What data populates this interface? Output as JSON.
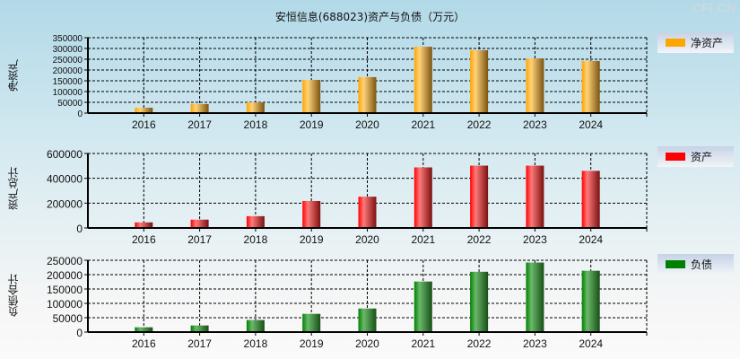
{
  "title": "安恒信息(688023)资产与负债（万元）",
  "watermark": "CFi.CN",
  "chart_data": [
    {
      "type": "bar",
      "ylabel": "净资产",
      "legend": "净资产",
      "color": "#ffa500",
      "categories": [
        "2016",
        "2017",
        "2018",
        "2019",
        "2020",
        "2021",
        "2022",
        "2023",
        "2024"
      ],
      "values": [
        25000,
        42000,
        50000,
        154000,
        167000,
        308000,
        292000,
        254000,
        242000
      ],
      "ylim": [
        0,
        350000
      ],
      "yticks": [
        0,
        50000,
        100000,
        150000,
        200000,
        250000,
        300000,
        350000
      ],
      "grid": true,
      "legend_position": "right"
    },
    {
      "type": "bar",
      "ylabel": "资产总计",
      "legend": "资产",
      "color": "#ff0000",
      "categories": [
        "2016",
        "2017",
        "2018",
        "2019",
        "2020",
        "2021",
        "2022",
        "2023",
        "2024"
      ],
      "values": [
        45000,
        67000,
        95000,
        217000,
        252000,
        488000,
        502000,
        502000,
        460000
      ],
      "ylim": [
        0,
        600000
      ],
      "yticks": [
        0,
        200000,
        400000,
        600000
      ],
      "grid": true,
      "legend_position": "right"
    },
    {
      "type": "bar",
      "ylabel": "负债合计",
      "legend": "负债",
      "color": "#008000",
      "categories": [
        "2016",
        "2017",
        "2018",
        "2019",
        "2020",
        "2021",
        "2022",
        "2023",
        "2024"
      ],
      "values": [
        16700,
        23000,
        42000,
        63500,
        82000,
        176000,
        210000,
        242000,
        213500
      ],
      "ylim": [
        0,
        250000
      ],
      "yticks": [
        0,
        50000,
        100000,
        150000,
        200000,
        250000
      ],
      "grid": true,
      "legend_position": "right"
    }
  ]
}
